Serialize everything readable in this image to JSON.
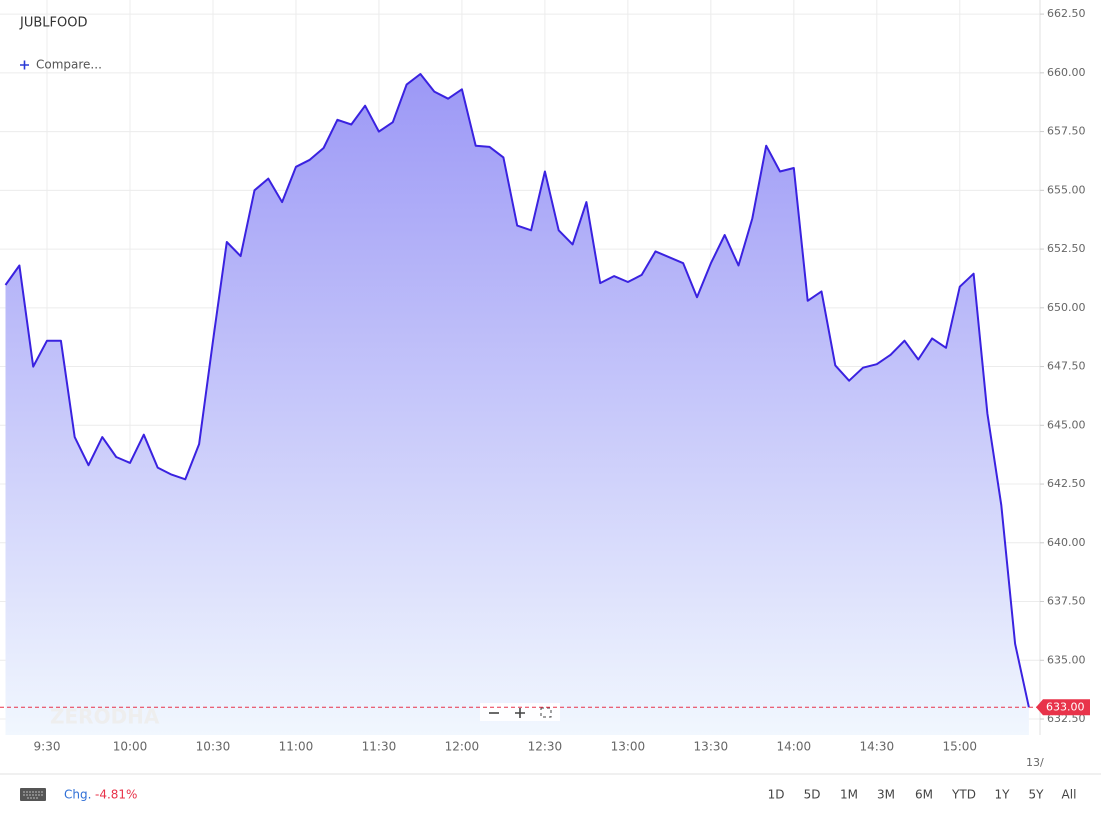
{
  "chart_data": {
    "type": "area",
    "title": "JUBLFOOD",
    "compare_label": "Compare...",
    "watermark": "ZERODHA",
    "x": [
      "9:15",
      "9:20",
      "9:25",
      "9:30",
      "9:35",
      "9:40",
      "9:45",
      "9:50",
      "9:55",
      "10:00",
      "10:05",
      "10:10",
      "10:15",
      "10:20",
      "10:25",
      "10:30",
      "10:35",
      "10:40",
      "10:45",
      "10:50",
      "10:55",
      "11:00",
      "11:05",
      "11:10",
      "11:15",
      "11:20",
      "11:25",
      "11:30",
      "11:35",
      "11:40",
      "11:45",
      "11:50",
      "11:55",
      "12:00",
      "12:05",
      "12:10",
      "12:15",
      "12:20",
      "12:25",
      "12:30",
      "12:35",
      "12:40",
      "12:45",
      "12:50",
      "12:55",
      "13:00",
      "13:05",
      "13:10",
      "13:15",
      "13:20",
      "13:25",
      "13:30",
      "13:35",
      "13:40",
      "13:45",
      "13:50",
      "13:55",
      "14:00",
      "14:05",
      "14:10",
      "14:15",
      "14:20",
      "14:25",
      "14:30",
      "14:35",
      "14:40",
      "14:45",
      "14:50",
      "14:55",
      "15:00",
      "15:05",
      "15:10",
      "15:15",
      "15:20",
      "15:25"
    ],
    "series": [
      {
        "name": "JUBLFOOD",
        "color": "#3a22e0",
        "values": [
          650.97,
          651.8,
          647.5,
          648.6,
          648.6,
          644.5,
          643.3,
          644.5,
          643.65,
          643.4,
          644.6,
          643.2,
          642.9,
          642.7,
          644.2,
          648.6,
          652.8,
          652.2,
          655.0,
          655.5,
          654.5,
          656.0,
          656.3,
          656.8,
          658.0,
          657.8,
          658.6,
          657.5,
          657.9,
          659.5,
          659.95,
          659.2,
          658.9,
          659.3,
          656.9,
          656.85,
          656.4,
          653.5,
          653.3,
          655.8,
          653.3,
          652.7,
          654.5,
          651.05,
          651.35,
          651.1,
          651.4,
          652.4,
          652.15,
          651.9,
          650.45,
          651.9,
          653.1,
          651.8,
          653.8,
          656.9,
          655.8,
          655.95,
          650.3,
          650.7,
          647.55,
          646.9,
          647.45,
          647.6,
          648.0,
          648.6,
          647.8,
          648.7,
          648.3,
          650.9,
          651.45,
          645.5,
          641.6,
          635.7,
          633.0
        ]
      }
    ],
    "xlim": [
      "9:13",
      "15:29"
    ],
    "xticks": [
      "9:30",
      "10:00",
      "10:30",
      "11:00",
      "11:30",
      "12:00",
      "12:30",
      "13:00",
      "13:30",
      "14:00",
      "14:30",
      "15:00"
    ],
    "x_end_label": "13/",
    "ylim": [
      631.82,
      663.1
    ],
    "yticks": [
      {
        "value": 632.5,
        "label": "632.50"
      },
      {
        "value": 635,
        "label": "635.00"
      },
      {
        "value": 637.5,
        "label": "637.50"
      },
      {
        "value": 640,
        "label": "640.00"
      },
      {
        "value": 642.5,
        "label": "642.50"
      },
      {
        "value": 645,
        "label": "645.00"
      },
      {
        "value": 647.5,
        "label": "647.50"
      },
      {
        "value": 650,
        "label": "650.00"
      },
      {
        "value": 652.5,
        "label": "652.50"
      },
      {
        "value": 655,
        "label": "655.00"
      },
      {
        "value": 657.5,
        "label": "657.50"
      },
      {
        "value": 660,
        "label": "660.00"
      },
      {
        "value": 662.5,
        "label": "662.50"
      }
    ],
    "grid": true,
    "last_price": {
      "value": 633,
      "label": "633.00",
      "color": "#e8334a"
    },
    "change": {
      "label": "Chg.",
      "value": -4.81,
      "value_label": "-4.81%"
    },
    "ranges": [
      "1D",
      "5D",
      "1M",
      "3M",
      "6M",
      "YTD",
      "1Y",
      "5Y",
      "All"
    ]
  }
}
